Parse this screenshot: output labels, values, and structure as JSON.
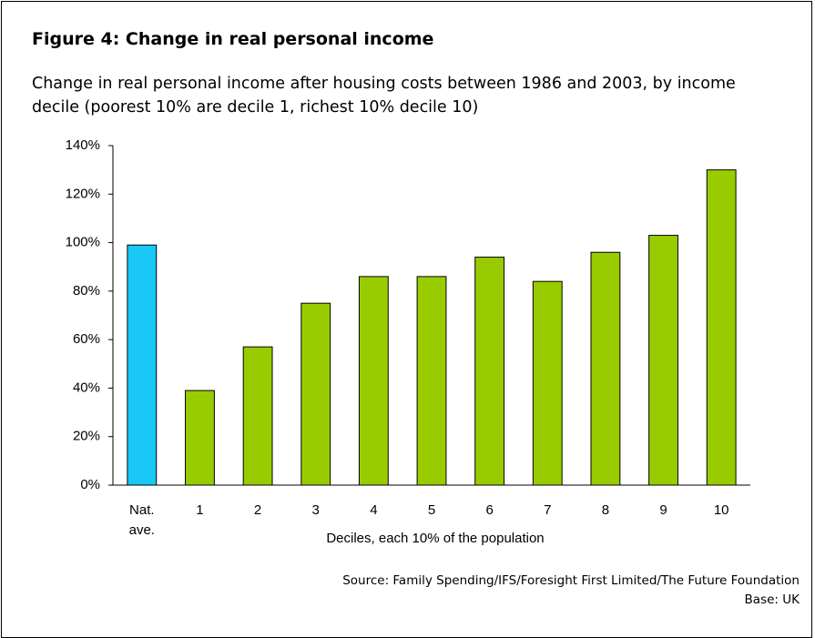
{
  "chart_data": {
    "type": "bar",
    "title": "Figure 4: Change in real personal income",
    "subtitle": "Change in real personal income after housing costs between 1986 and 2003, by income decile (poorest 10% are decile 1, richest 10% decile 10)",
    "x_label": "Deciles, each 10% of the population",
    "source": "Source: Family Spending/IFS/Foresight First Limited/The Future Foundation",
    "base": "Base: UK",
    "categories": [
      "Nat. ave.",
      "1",
      "2",
      "3",
      "4",
      "5",
      "6",
      "7",
      "8",
      "9",
      "10"
    ],
    "values": [
      99,
      39,
      57,
      75,
      86,
      86,
      94,
      84,
      96,
      103,
      130
    ],
    "colors": [
      "#1ac8f5",
      "#99cc00",
      "#99cc00",
      "#99cc00",
      "#99cc00",
      "#99cc00",
      "#99cc00",
      "#99cc00",
      "#99cc00",
      "#99cc00",
      "#99cc00"
    ],
    "ylim": [
      0,
      140
    ],
    "yticks": [
      {
        "value": 0,
        "label": "0%"
      },
      {
        "value": 20,
        "label": "20%"
      },
      {
        "value": 40,
        "label": "40%"
      },
      {
        "value": 60,
        "label": "60%"
      },
      {
        "value": 80,
        "label": "80%"
      },
      {
        "value": 100,
        "label": "100%"
      },
      {
        "value": 120,
        "label": "120%"
      },
      {
        "value": 140,
        "label": "140%"
      }
    ],
    "grid": false
  }
}
